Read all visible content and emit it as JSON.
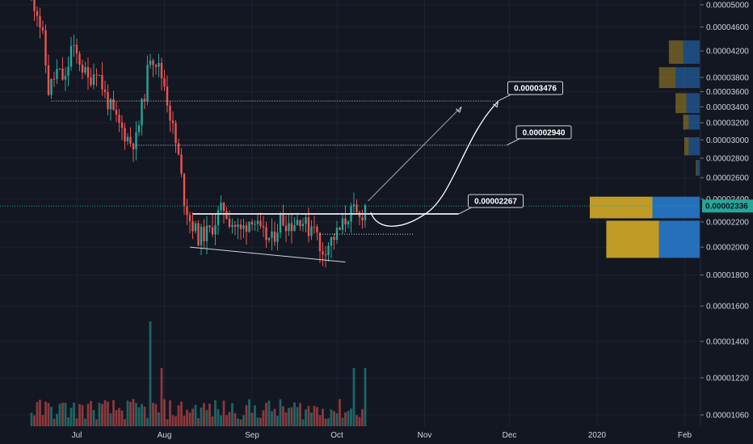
{
  "chart_data": {
    "type": "candlestick",
    "price_axis": {
      "scale": "log",
      "ylim": [
        1e-05,
        5.13e-05
      ],
      "tick_labels": [
        "0.00005000",
        "0.00004600",
        "0.00004200",
        "0.00003800",
        "0.00003600",
        "0.00003400",
        "0.00003200",
        "0.00003000",
        "0.00002800",
        "0.00002600",
        "0.00002400",
        "0.00002200",
        "0.00002000",
        "0.00001800",
        "0.00001600",
        "0.00001400",
        "0.00001220",
        "0.00001060"
      ],
      "tick_values": [
        5e-05,
        4.6e-05,
        4.2e-05,
        3.8e-05,
        3.6e-05,
        3.4e-05,
        3.2e-05,
        3e-05,
        2.8e-05,
        2.6e-05,
        2.4e-05,
        2.2e-05,
        2e-05,
        1.8e-05,
        1.6e-05,
        1.4e-05,
        1.22e-05,
        1.06e-05
      ]
    },
    "time_axis": {
      "range": [
        "2019-06-05",
        "2020-02-08"
      ],
      "tick_labels": [
        "Jul",
        "Aug",
        "Sep",
        "Oct",
        "Nov",
        "Dec",
        "2020",
        "Feb"
      ],
      "tick_dates": [
        "2019-07-01",
        "2019-08-01",
        "2019-09-01",
        "2019-10-01",
        "2019-11-01",
        "2019-12-01",
        "2020-01-01",
        "2020-02-01"
      ]
    },
    "candle_anchors": [
      {
        "date": "2019-06-15",
        "price": 5.15e-05
      },
      {
        "date": "2019-06-17",
        "price": 4.9e-05
      },
      {
        "date": "2019-06-19",
        "price": 4.4e-05
      },
      {
        "date": "2019-06-21",
        "price": 3.62e-05
      },
      {
        "date": "2019-06-24",
        "price": 3.88e-05
      },
      {
        "date": "2019-06-27",
        "price": 3.75e-05
      },
      {
        "date": "2019-06-29",
        "price": 4.25e-05
      },
      {
        "date": "2019-07-02",
        "price": 4.05e-05
      },
      {
        "date": "2019-07-05",
        "price": 3.75e-05
      },
      {
        "date": "2019-07-08",
        "price": 3.95e-05
      },
      {
        "date": "2019-07-11",
        "price": 3.55e-05
      },
      {
        "date": "2019-07-15",
        "price": 3.22e-05
      },
      {
        "date": "2019-07-17",
        "price": 3.12e-05
      },
      {
        "date": "2019-07-20",
        "price": 2.98e-05
      },
      {
        "date": "2019-07-22",
        "price": 3e-05
      },
      {
        "date": "2019-07-25",
        "price": 3.6e-05
      },
      {
        "date": "2019-07-27",
        "price": 4.15e-05
      },
      {
        "date": "2019-07-29",
        "price": 4.05e-05
      },
      {
        "date": "2019-08-01",
        "price": 3.7e-05
      },
      {
        "date": "2019-08-03",
        "price": 3.3e-05
      },
      {
        "date": "2019-08-06",
        "price": 2.8e-05
      },
      {
        "date": "2019-08-08",
        "price": 2.4e-05
      },
      {
        "date": "2019-08-10",
        "price": 2.22e-05
      },
      {
        "date": "2019-08-13",
        "price": 2.08e-05
      },
      {
        "date": "2019-08-17",
        "price": 2.12e-05
      },
      {
        "date": "2019-08-20",
        "price": 2.26e-05
      },
      {
        "date": "2019-08-22",
        "price": 2.32e-05
      },
      {
        "date": "2019-08-24",
        "price": 2.22e-05
      },
      {
        "date": "2019-08-28",
        "price": 2.12e-05
      },
      {
        "date": "2019-09-01",
        "price": 2.25e-05
      },
      {
        "date": "2019-09-04",
        "price": 2.1e-05
      },
      {
        "date": "2019-09-08",
        "price": 2.05e-05
      },
      {
        "date": "2019-09-11",
        "price": 2.22e-05
      },
      {
        "date": "2019-09-15",
        "price": 2.18e-05
      },
      {
        "date": "2019-09-18",
        "price": 2.24e-05
      },
      {
        "date": "2019-09-21",
        "price": 2.14e-05
      },
      {
        "date": "2019-09-23",
        "price": 2.22e-05
      },
      {
        "date": "2019-09-25",
        "price": 1.95e-05
      },
      {
        "date": "2019-09-28",
        "price": 2.03e-05
      },
      {
        "date": "2019-10-02",
        "price": 2.13e-05
      },
      {
        "date": "2019-10-05",
        "price": 2.26e-05
      },
      {
        "date": "2019-10-07",
        "price": 2.28e-05
      },
      {
        "date": "2019-10-09",
        "price": 2.22e-05
      },
      {
        "date": "2019-10-11",
        "price": 2.34e-05
      }
    ],
    "volume_spikes": [
      {
        "date": "2019-07-27",
        "scale": "max"
      },
      {
        "date": "2019-07-31",
        "scale": "high"
      },
      {
        "date": "2019-10-07",
        "scale": "high"
      },
      {
        "date": "2019-10-11",
        "scale": "high"
      }
    ],
    "colors": {
      "up": "#26a69a",
      "down": "#ef5350",
      "grid": "#1e222d",
      "background": "#131722",
      "axis_text": "#d1d4dc",
      "guide": "#c8cad1",
      "current_price": "#26a69a"
    },
    "levels": [
      {
        "label": "0.00003476",
        "price": 3.476e-05,
        "from_date": "2019-06-22",
        "to_date": "2019-11-27"
      },
      {
        "label": "0.00002940",
        "price": 2.94e-05,
        "from_date": "2019-07-22",
        "to_date": "2019-11-30"
      },
      {
        "label": "0.00002267",
        "price": 2.267e-05,
        "from_date": "2019-08-11",
        "to_date": "2019-11-13"
      }
    ],
    "support_line": {
      "from": {
        "date": "2019-08-10",
        "price": 2e-05
      },
      "to": {
        "date": "2019-10-04",
        "price": 1.89e-05
      }
    },
    "range_low_line": {
      "price": 2.1e-05,
      "from_date": "2019-09-25",
      "to_date": "2019-10-28"
    },
    "current_price": {
      "label": "0.00002336",
      "value": 2.336e-05
    },
    "projections": [
      {
        "type": "straight",
        "from": {
          "date": "2019-10-12",
          "price": 2.38e-05
        },
        "to": {
          "date": "2019-11-14",
          "price": 3.4e-05
        }
      },
      {
        "type": "curve",
        "from": {
          "date": "2019-10-13",
          "price": 2.28e-05
        },
        "to": {
          "date": "2019-11-27",
          "price": 3.47e-05
        }
      }
    ],
    "volume_profile": [
      {
        "price_from": 4e-05,
        "price_to": 4.37e-05,
        "buy": 0.13,
        "sell": 0.15
      },
      {
        "price_from": 3.65e-05,
        "price_to": 3.95e-05,
        "buy": 0.15,
        "sell": 0.22
      },
      {
        "price_from": 3.32e-05,
        "price_to": 3.58e-05,
        "buy": 0.1,
        "sell": 0.12
      },
      {
        "price_from": 3.12e-05,
        "price_to": 3.3e-05,
        "buy": 0.05,
        "sell": 0.1
      },
      {
        "price_from": 2.83e-05,
        "price_to": 3.03e-05,
        "buy": 0.04,
        "sell": 0.1
      },
      {
        "price_from": 2.62e-05,
        "price_to": 2.78e-05,
        "buy": 0.01,
        "sell": 0.025
      },
      {
        "price_from": 2.23e-05,
        "price_to": 2.42e-05,
        "buy": 0.57,
        "sell": 0.43
      },
      {
        "price_from": 1.92e-05,
        "price_to": 2.21e-05,
        "buy": 0.48,
        "sell": 0.37
      }
    ]
  }
}
